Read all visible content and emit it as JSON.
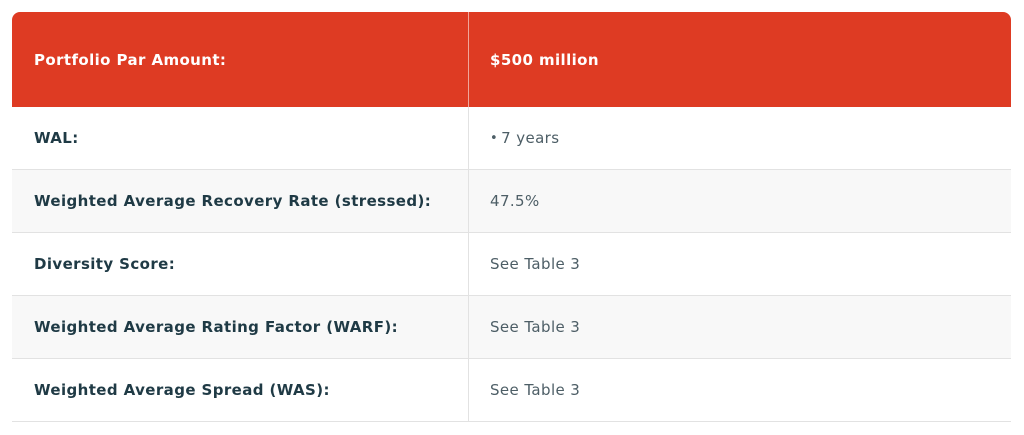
{
  "colors": {
    "header_bg": "#de3b23",
    "label_text": "#1f3a45",
    "value_text": "#4d5e66",
    "alt_row_bg": "#f8f8f8"
  },
  "header": {
    "label": "Portfolio Par Amount:",
    "value": "$500 million"
  },
  "rows": [
    {
      "label": "WAL:",
      "bullet": "•",
      "value": "7 years"
    },
    {
      "label": "Weighted Average Recovery Rate (stressed):",
      "value": "47.5%"
    },
    {
      "label": "Diversity Score:",
      "value": "See Table 3"
    },
    {
      "label": "Weighted Average Rating Factor (WARF):",
      "value": "See Table 3"
    },
    {
      "label": "Weighted Average Spread (WAS):",
      "value": "See Table 3"
    }
  ]
}
